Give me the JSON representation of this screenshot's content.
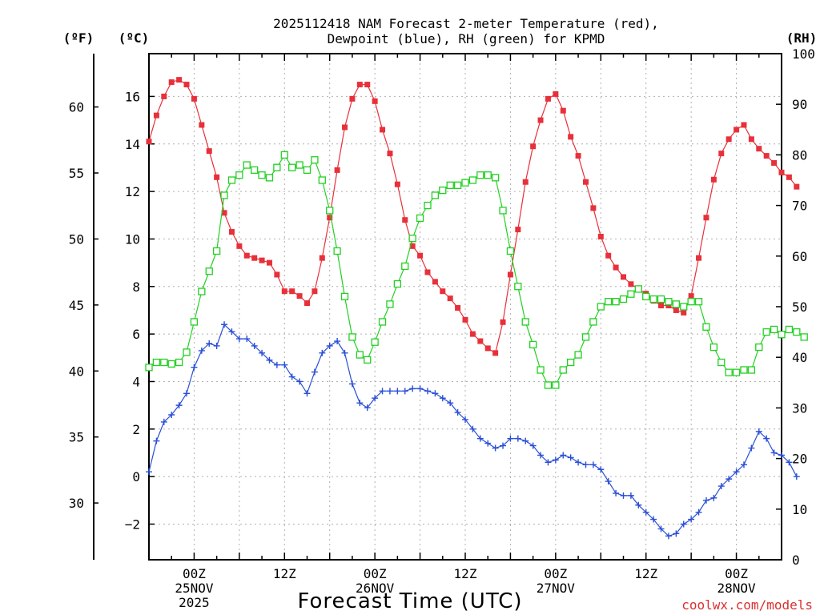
{
  "chart_data": {
    "type": "line",
    "title": [
      "2025112418 NAM Forecast 2-meter Temperature (red),",
      "Dewpoint (blue), RH (green) for KPMD"
    ],
    "xlabel": "Forecast Time (UTC)",
    "credit": "coolwx.com/models",
    "units": {
      "fahrenheit": "(ºF)",
      "celsius": "(ºC)",
      "rh": "(RH)"
    },
    "x_range_hours": [
      0,
      84
    ],
    "x_ticks": [
      {
        "hour": 6,
        "lines": [
          "00Z",
          "25NOV",
          "2025"
        ]
      },
      {
        "hour": 18,
        "lines": [
          "12Z"
        ]
      },
      {
        "hour": 30,
        "lines": [
          "00Z",
          "26NOV"
        ]
      },
      {
        "hour": 42,
        "lines": [
          "12Z"
        ]
      },
      {
        "hour": 54,
        "lines": [
          "00Z",
          "27NOV"
        ]
      },
      {
        "hour": 66,
        "lines": [
          "12Z"
        ]
      },
      {
        "hour": 78,
        "lines": [
          "00Z",
          "28NOV"
        ]
      }
    ],
    "celsius_axis": {
      "range": [
        -3.5,
        17.8
      ],
      "ticks": [
        "-2",
        "0",
        "2",
        "4",
        "6",
        "8",
        "10",
        "12",
        "14",
        "16"
      ]
    },
    "fahrenheit_axis": {
      "ticks": [
        "30",
        "35",
        "40",
        "45",
        "50",
        "55",
        "60"
      ]
    },
    "rh_axis": {
      "range": [
        0,
        100
      ],
      "ticks": [
        "0",
        "10",
        "20",
        "30",
        "40",
        "50",
        "60",
        "70",
        "80",
        "90",
        "100"
      ]
    },
    "series": [
      {
        "name": "Temperature (°C)",
        "color": "#e8303a",
        "marker": "filled-square",
        "axis": "celsius",
        "values": [
          14.1,
          15.2,
          16.0,
          16.6,
          16.7,
          16.5,
          15.9,
          14.8,
          13.7,
          12.6,
          11.1,
          10.3,
          9.7,
          9.3,
          9.2,
          9.1,
          9.0,
          8.5,
          7.8,
          7.8,
          7.6,
          7.3,
          7.8,
          9.2,
          10.9,
          12.9,
          14.7,
          15.9,
          16.5,
          16.5,
          15.8,
          14.6,
          13.6,
          12.3,
          10.8,
          9.7,
          9.3,
          8.6,
          8.2,
          7.8,
          7.5,
          7.1,
          6.6,
          6.0,
          5.7,
          5.4,
          5.2,
          6.5,
          8.5,
          10.4,
          12.4,
          13.9,
          15.0,
          15.9,
          16.1,
          15.4,
          14.3,
          13.5,
          12.4,
          11.3,
          10.1,
          9.3,
          8.8,
          8.4,
          8.1,
          7.9,
          7.7,
          7.4,
          7.2,
          7.2,
          7.0,
          6.9,
          7.6,
          9.2,
          10.9,
          12.5,
          13.6,
          14.2,
          14.6,
          14.8,
          14.2,
          13.8,
          13.5,
          13.2,
          12.8,
          12.6,
          12.2
        ]
      },
      {
        "name": "Dewpoint (°C)",
        "color": "#2a4fd6",
        "marker": "plus",
        "axis": "celsius",
        "values": [
          0.2,
          1.5,
          2.3,
          2.6,
          3.0,
          3.5,
          4.6,
          5.3,
          5.6,
          5.5,
          6.4,
          6.1,
          5.8,
          5.8,
          5.5,
          5.2,
          4.9,
          4.7,
          4.7,
          4.2,
          4.0,
          3.5,
          4.4,
          5.2,
          5.5,
          5.7,
          5.2,
          3.9,
          3.1,
          2.9,
          3.3,
          3.6,
          3.6,
          3.6,
          3.6,
          3.7,
          3.7,
          3.6,
          3.5,
          3.3,
          3.1,
          2.7,
          2.4,
          2.0,
          1.6,
          1.4,
          1.2,
          1.3,
          1.6,
          1.6,
          1.5,
          1.3,
          0.9,
          0.6,
          0.7,
          0.9,
          0.8,
          0.6,
          0.5,
          0.5,
          0.3,
          -0.2,
          -0.7,
          -0.8,
          -0.8,
          -1.2,
          -1.5,
          -1.8,
          -2.2,
          -2.5,
          -2.4,
          -2.0,
          -1.8,
          -1.5,
          -1.0,
          -0.9,
          -0.4,
          -0.1,
          0.2,
          0.5,
          1.2,
          1.9,
          1.6,
          1.0,
          0.9,
          0.6,
          0.0
        ]
      },
      {
        "name": "RH (%)",
        "color": "#22d022",
        "marker": "open-square",
        "axis": "rh",
        "values": [
          38,
          39,
          39,
          38.7,
          39,
          41,
          47,
          53,
          57,
          61,
          72,
          75,
          76,
          78,
          77,
          76,
          75.5,
          77.5,
          80,
          77.5,
          78,
          77,
          79,
          75,
          69,
          61,
          52,
          44,
          40.5,
          39.5,
          43,
          47,
          50.5,
          54.5,
          58,
          63.5,
          67.5,
          70,
          72,
          73,
          74,
          74,
          74.5,
          75,
          76,
          76,
          75.5,
          69,
          61,
          54,
          47,
          42.5,
          37.5,
          34.5,
          34.5,
          37.5,
          39,
          40.5,
          44,
          47,
          50,
          51,
          51,
          51.5,
          52.5,
          53.5,
          52,
          51.5,
          51.5,
          51,
          50.5,
          50,
          51,
          51,
          46,
          42,
          39,
          37,
          37,
          37.5,
          37.5,
          42,
          45,
          45.5,
          44.5,
          45.5,
          45,
          44
        ]
      }
    ]
  }
}
